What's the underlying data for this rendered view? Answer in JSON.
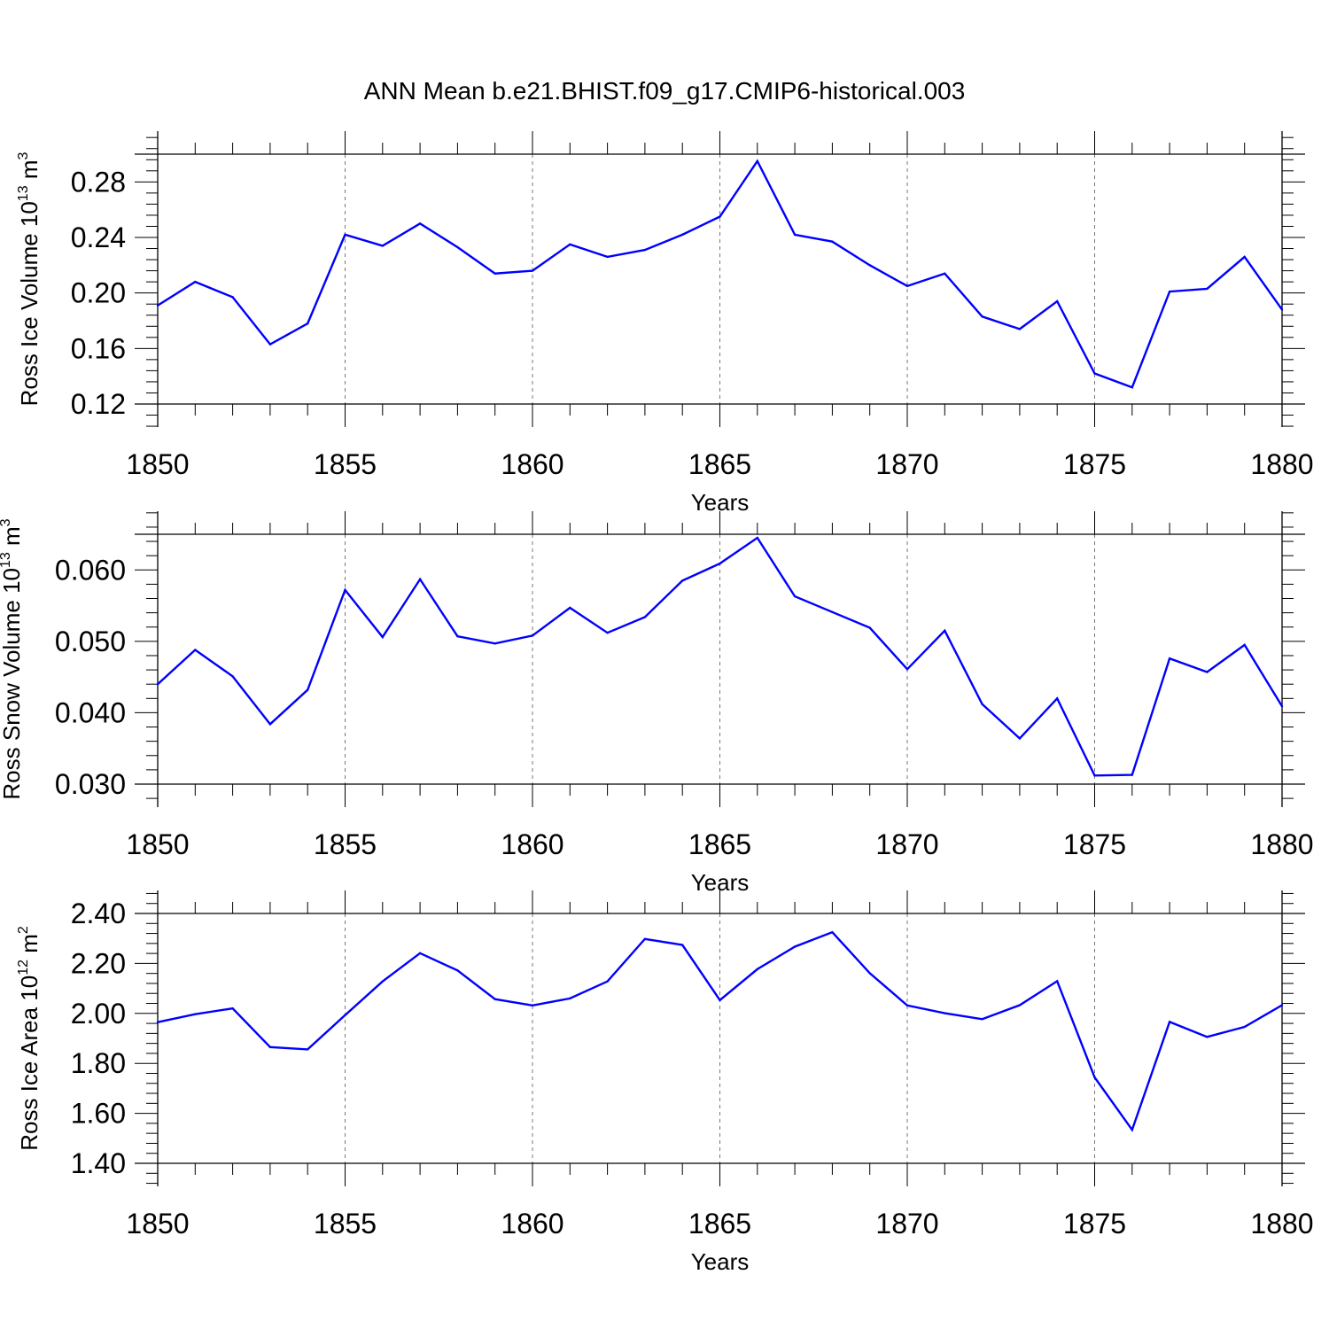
{
  "title": "ANN Mean b.e21.BHIST.f09_g17.CMIP6-historical.003",
  "style": {
    "line_color": "#0000ff",
    "axis_color": "#000000",
    "grid_color": "#777777"
  },
  "chart_data": [
    {
      "type": "line",
      "ylabel_main": "Ross Ice Volume 10",
      "ylabel_sup": "13",
      "ylabel_unit": "m",
      "ylabel_unit_sup": "3",
      "xlabel": "Years",
      "xlim": [
        1850,
        1880
      ],
      "ylim": [
        0.12,
        0.3
      ],
      "y_ticks": [
        "0.12",
        "0.16",
        "0.20",
        "0.24",
        "0.28"
      ],
      "x_ticks": [
        "1850",
        "1855",
        "1860",
        "1865",
        "1870",
        "1875",
        "1880"
      ],
      "grid": "vertical dashed at major x ticks",
      "series": [
        {
          "name": "Ross Ice Volume",
          "x": [
            1850,
            1851,
            1852,
            1853,
            1854,
            1855,
            1856,
            1857,
            1858,
            1859,
            1860,
            1861,
            1862,
            1863,
            1864,
            1865,
            1866,
            1867,
            1868,
            1869,
            1870,
            1871,
            1872,
            1873,
            1874,
            1875,
            1876,
            1877,
            1878,
            1879,
            1880
          ],
          "values": [
            0.191,
            0.208,
            0.197,
            0.163,
            0.178,
            0.242,
            0.234,
            0.25,
            0.233,
            0.214,
            0.216,
            0.235,
            0.226,
            0.231,
            0.242,
            0.255,
            0.295,
            0.242,
            0.237,
            0.22,
            0.205,
            0.214,
            0.183,
            0.174,
            0.194,
            0.142,
            0.132,
            0.201,
            0.203,
            0.226,
            0.188
          ]
        }
      ]
    },
    {
      "type": "line",
      "ylabel_main": "Ross Snow Volume 10",
      "ylabel_sup": "13",
      "ylabel_unit": "m",
      "ylabel_unit_sup": "3",
      "xlabel": "Years",
      "xlim": [
        1850,
        1880
      ],
      "ylim": [
        0.03,
        0.065
      ],
      "y_ticks": [
        "0.030",
        "0.040",
        "0.050",
        "0.060"
      ],
      "x_ticks": [
        "1850",
        "1855",
        "1860",
        "1865",
        "1870",
        "1875",
        "1880"
      ],
      "grid": "vertical dashed at major x ticks",
      "series": [
        {
          "name": "Ross Snow Volume",
          "x": [
            1850,
            1851,
            1852,
            1853,
            1854,
            1855,
            1856,
            1857,
            1858,
            1859,
            1860,
            1861,
            1862,
            1863,
            1864,
            1865,
            1866,
            1867,
            1868,
            1869,
            1870,
            1871,
            1872,
            1873,
            1874,
            1875,
            1876,
            1877,
            1878,
            1879,
            1880
          ],
          "values": [
            0.044,
            0.0488,
            0.0451,
            0.0384,
            0.0432,
            0.0572,
            0.0506,
            0.0587,
            0.0507,
            0.0497,
            0.0508,
            0.0547,
            0.0512,
            0.0534,
            0.0585,
            0.0609,
            0.0645,
            0.0563,
            0.0541,
            0.0519,
            0.0461,
            0.0515,
            0.0412,
            0.0364,
            0.042,
            0.0312,
            0.0313,
            0.0476,
            0.0457,
            0.0495,
            0.0409
          ]
        }
      ]
    },
    {
      "type": "line",
      "ylabel_main": "Ross Ice Area 10",
      "ylabel_sup": "12",
      "ylabel_unit": "m",
      "ylabel_unit_sup": "2",
      "xlabel": "Years",
      "xlim": [
        1850,
        1880
      ],
      "ylim": [
        1.4,
        2.4
      ],
      "y_ticks": [
        "1.40",
        "1.60",
        "1.80",
        "2.00",
        "2.20",
        "2.40"
      ],
      "x_ticks": [
        "1850",
        "1855",
        "1860",
        "1865",
        "1870",
        "1875",
        "1880"
      ],
      "grid": "vertical dashed at major x ticks",
      "series": [
        {
          "name": "Ross Ice Area",
          "x": [
            1850,
            1851,
            1852,
            1853,
            1854,
            1855,
            1856,
            1857,
            1858,
            1859,
            1860,
            1861,
            1862,
            1863,
            1864,
            1865,
            1866,
            1867,
            1868,
            1869,
            1870,
            1871,
            1872,
            1873,
            1874,
            1875,
            1876,
            1877,
            1878,
            1879,
            1880
          ],
          "values": [
            1.965,
            1.997,
            2.02,
            1.865,
            1.856,
            1.993,
            2.128,
            2.241,
            2.172,
            2.057,
            2.032,
            2.06,
            2.128,
            2.298,
            2.274,
            2.053,
            2.177,
            2.267,
            2.325,
            2.161,
            2.032,
            2.001,
            1.977,
            2.033,
            2.129,
            1.744,
            1.534,
            1.966,
            1.906,
            1.946,
            2.033
          ]
        }
      ]
    }
  ]
}
